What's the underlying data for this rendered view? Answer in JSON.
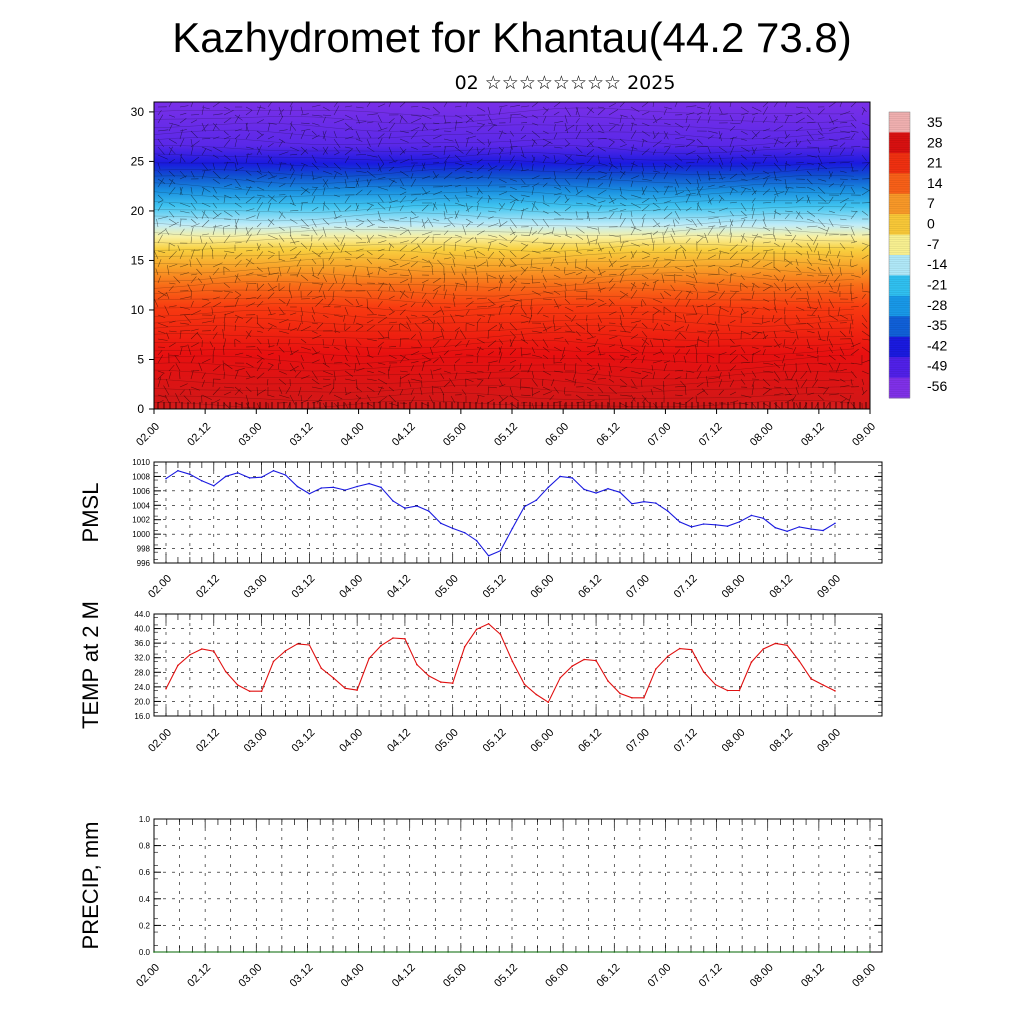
{
  "title": "Kazhydromet for Khantau(44.2 73.8)",
  "subtitle": "02 ☆☆☆☆☆☆☆☆ 2025",
  "time_labels": [
    "02.00",
    "02.12",
    "03.00",
    "03.12",
    "04.00",
    "04.12",
    "05.00",
    "05.12",
    "06.00",
    "06.12",
    "07.00",
    "07.12",
    "08.00",
    "08.12",
    "09.00"
  ],
  "colors": {
    "pmsl_line": "#1a1adf",
    "temp_line": "#e01010",
    "precip_line": "#006400"
  },
  "chart_data": [
    {
      "type": "heatmap",
      "name": "cross-section",
      "y": {
        "ticks": [
          0,
          5,
          10,
          15,
          20,
          25,
          30
        ],
        "range": [
          0,
          31
        ]
      },
      "x_categories": [
        "02.00",
        "02.12",
        "03.00",
        "03.12",
        "04.00",
        "04.12",
        "05.00",
        "05.12",
        "06.00",
        "06.12",
        "07.00",
        "07.12",
        "08.00",
        "08.12",
        "09.00"
      ],
      "colorbar": {
        "labels": [
          "35",
          "28",
          "21",
          "14",
          "7",
          "0",
          "-7",
          "-14",
          "-21",
          "-28",
          "-35",
          "-42",
          "-49",
          "-56"
        ],
        "stops": [
          "#f0b0b0",
          "#d81010",
          "#f03010",
          "#f86018",
          "#f89828",
          "#f8c838",
          "#f8f090",
          "#b0e8f8",
          "#30c0f0",
          "#1898e8",
          "#1060d8",
          "#1a1adf",
          "#5020e8",
          "#8030e8"
        ]
      },
      "wind_barbs": true
    },
    {
      "type": "line",
      "ylabel": "PMSL",
      "ylim": [
        996,
        1010
      ],
      "yticks": [
        "1010",
        "1008",
        "1006",
        "1004",
        "1002",
        "1000",
        "998",
        "996"
      ],
      "x_tick_labels": [
        "02.00",
        "02.12",
        "03.00",
        "03.12",
        "04.00",
        "04.12",
        "05.00",
        "05.12",
        "06.00",
        "06.12",
        "07.00",
        "07.12",
        "08.00",
        "08.12",
        "09.00"
      ],
      "series": [
        {
          "values": [
            1007.7,
            1008.8,
            1008.3,
            1007.4,
            1006.7,
            1008.0,
            1008.5,
            1007.8,
            1007.9,
            1008.8,
            1008.2,
            1006.6,
            1005.6,
            1006.4,
            1006.5,
            1006.1,
            1006.6,
            1007.0,
            1006.5,
            1004.6,
            1003.6,
            1003.9,
            1003.2,
            1001.5,
            1000.8,
            1000.2,
            999.1,
            997.0,
            997.7,
            1000.8,
            1003.8,
            1004.7,
            1006.5,
            1008.0,
            1007.8,
            1006.2,
            1005.7,
            1006.3,
            1005.8,
            1004.2,
            1004.5,
            1004.3,
            1003.2,
            1001.7,
            1001.0,
            1001.4,
            1001.3,
            1001.1,
            1001.7,
            1002.6,
            1002.2,
            1000.9,
            1000.4,
            1001.0,
            1000.7,
            1000.5,
            1001.5
          ]
        }
      ]
    },
    {
      "type": "line",
      "ylabel": "TEMP at 2 M",
      "ylim": [
        16,
        44
      ],
      "yticks": [
        "44.0",
        "40.0",
        "36.0",
        "32.0",
        "28.0",
        "24.0",
        "20.0",
        "16.0"
      ],
      "x_tick_labels": [
        "02.00",
        "02.12",
        "03.00",
        "03.12",
        "04.00",
        "04.12",
        "05.00",
        "05.12",
        "06.00",
        "06.12",
        "07.00",
        "07.12",
        "08.00",
        "08.12",
        "09.00"
      ],
      "series": [
        {
          "values": [
            23.5,
            29.9,
            32.8,
            34.4,
            33.8,
            28.2,
            24.5,
            22.8,
            22.8,
            31.0,
            33.9,
            35.8,
            35.5,
            29.1,
            26.5,
            23.6,
            23.1,
            31.8,
            35.3,
            37.4,
            37.2,
            30.1,
            27.0,
            25.3,
            25.0,
            35.0,
            39.8,
            41.3,
            38.4,
            31.0,
            24.7,
            21.9,
            19.8,
            26.5,
            29.7,
            31.5,
            31.2,
            25.6,
            22.2,
            21.0,
            21.0,
            28.9,
            32.4,
            34.5,
            34.2,
            28.1,
            24.6,
            23.0,
            23.0,
            30.8,
            34.4,
            35.9,
            35.4,
            31.1,
            26.2,
            24.5,
            22.9
          ]
        }
      ]
    },
    {
      "type": "line",
      "ylabel": "PRECIP, mm",
      "ylim": [
        0,
        1
      ],
      "yticks": [
        "1.0",
        "0.8",
        "0.6",
        "0.4",
        "0.2",
        "0.0"
      ],
      "x_tick_labels": [
        "02.00",
        "02.12",
        "03.00",
        "03.12",
        "04.00",
        "04.12",
        "05.00",
        "05.12",
        "06.00",
        "06.12",
        "07.00",
        "07.12",
        "08.00",
        "08.12",
        "09.00"
      ],
      "series": [
        {
          "values": [
            0,
            0,
            0,
            0,
            0,
            0,
            0,
            0,
            0,
            0,
            0,
            0,
            0,
            0,
            0,
            0,
            0,
            0,
            0,
            0,
            0,
            0,
            0,
            0,
            0,
            0,
            0,
            0,
            0,
            0,
            0,
            0,
            0,
            0,
            0,
            0,
            0,
            0,
            0,
            0,
            0,
            0,
            0,
            0,
            0,
            0,
            0,
            0,
            0,
            0,
            0,
            0,
            0,
            0,
            0,
            0,
            0
          ]
        }
      ]
    }
  ]
}
